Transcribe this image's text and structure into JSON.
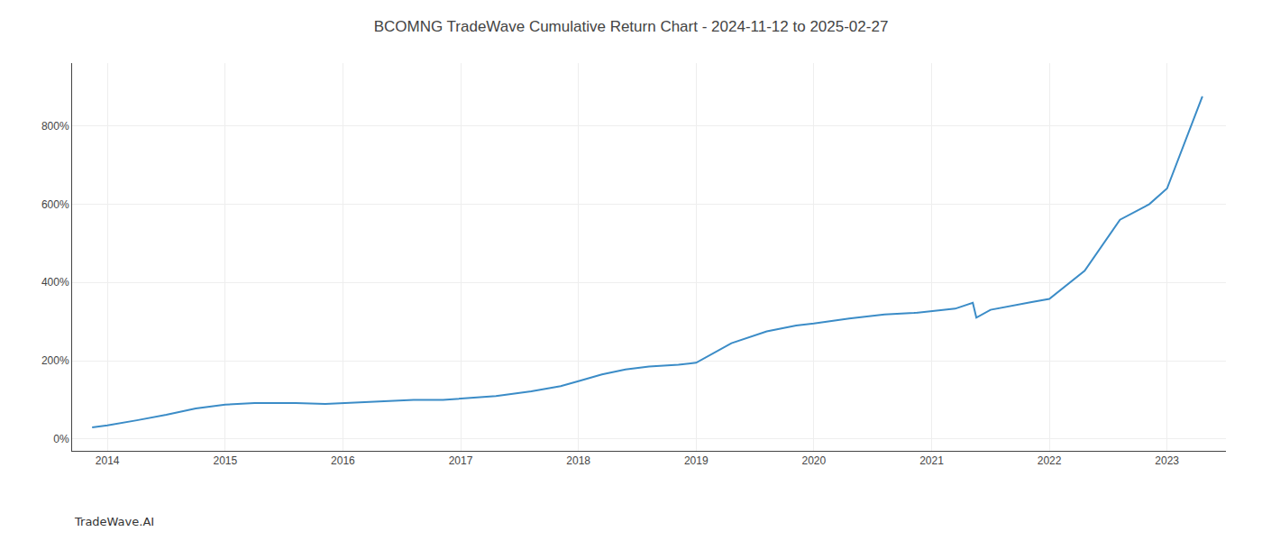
{
  "chart_data": {
    "type": "line",
    "title": "BCOMNG TradeWave Cumulative Return Chart - 2024-11-12 to 2025-02-27",
    "annotations": [
      "TradeWave.AI"
    ],
    "x": [
      2013.87,
      2014.0,
      2014.25,
      2014.5,
      2014.75,
      2015.0,
      2015.25,
      2015.6,
      2015.85,
      2016.0,
      2016.3,
      2016.6,
      2016.85,
      2017.0,
      2017.3,
      2017.6,
      2017.85,
      2018.0,
      2018.2,
      2018.4,
      2018.6,
      2018.85,
      2019.0,
      2019.3,
      2019.6,
      2019.85,
      2020.0,
      2020.3,
      2020.6,
      2020.85,
      2021.0,
      2021.2,
      2021.35,
      2021.38,
      2021.5,
      2021.7,
      2021.85,
      2022.0,
      2022.3,
      2022.6,
      2022.85,
      2023.0,
      2023.3
    ],
    "values": [
      30,
      35,
      48,
      62,
      78,
      88,
      92,
      92,
      90,
      92,
      96,
      100,
      100,
      103,
      110,
      122,
      135,
      148,
      165,
      178,
      185,
      190,
      195,
      245,
      275,
      290,
      295,
      308,
      318,
      322,
      326,
      333,
      348,
      310,
      330,
      342,
      350,
      358,
      430,
      560,
      600,
      640,
      875
    ],
    "color": "#3b8cc7",
    "xlim": [
      2013.7,
      2023.5
    ],
    "ylim": [
      -30,
      960
    ],
    "xticks": [
      2014,
      2015,
      2016,
      2017,
      2018,
      2019,
      2020,
      2021,
      2022,
      2023
    ],
    "yticks": [
      {
        "value": 0,
        "label": "0%"
      },
      {
        "value": 200,
        "label": "200%"
      },
      {
        "value": 400,
        "label": "400%"
      },
      {
        "value": 600,
        "label": "600%"
      },
      {
        "value": 800,
        "label": "800%"
      }
    ],
    "grid": true
  }
}
